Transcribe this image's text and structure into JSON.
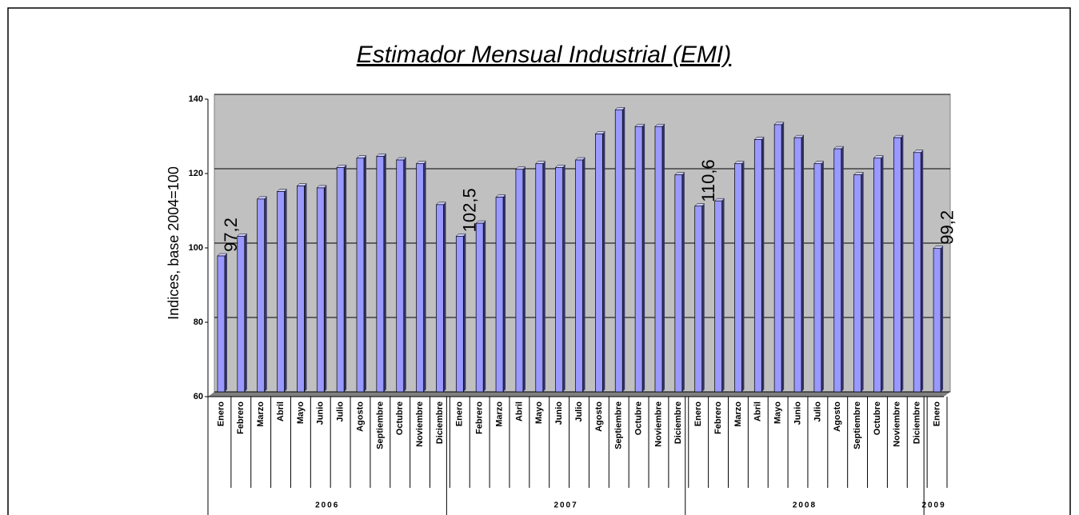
{
  "chart_data": {
    "type": "bar",
    "title": "Estimador Mensual Industrial (EMI)",
    "y_label": "Indices, base 2004=100",
    "categories": [
      "Enero",
      "Febrero",
      "Marzo",
      "Abril",
      "Mayo",
      "Junio",
      "Julio",
      "Agosto",
      "Septiembre",
      "Octubre",
      "Noviembre",
      "Diciembre",
      "Enero",
      "Febrero",
      "Marzo",
      "Abril",
      "Mayo",
      "Junio",
      "Julio",
      "Agosto",
      "Septiembre",
      "Octubre",
      "Noviembre",
      "Diciembre",
      "Enero",
      "Febrero",
      "Marzo",
      "Abril",
      "Mayo",
      "Junio",
      "Julio",
      "Agosto",
      "Septiembre",
      "Octubre",
      "Noviembre",
      "Diciembre",
      "Enero"
    ],
    "groups": [
      {
        "label": "2006",
        "count": 12
      },
      {
        "label": "2007",
        "count": 12
      },
      {
        "label": "2008",
        "count": 12
      },
      {
        "label": "2009",
        "count": 1
      }
    ],
    "values": [
      97.2,
      102.5,
      112.5,
      114.5,
      116,
      115.5,
      121,
      123.5,
      124,
      123,
      122,
      111,
      102.5,
      106,
      113,
      120.5,
      122,
      121,
      123,
      130,
      136.5,
      132,
      132,
      119,
      110.6,
      112,
      122,
      128.5,
      132.5,
      129,
      122,
      126,
      119,
      123.5,
      129,
      125,
      99.2
    ],
    "value_labels": [
      "97,2",
      null,
      null,
      null,
      null,
      null,
      null,
      null,
      null,
      null,
      null,
      null,
      "102,5",
      null,
      null,
      null,
      null,
      null,
      null,
      null,
      null,
      null,
      null,
      null,
      "110,6",
      null,
      null,
      null,
      null,
      null,
      null,
      null,
      null,
      null,
      null,
      null,
      "99,2"
    ],
    "color": "#9999ff",
    "ylim": [
      60,
      140
    ],
    "yticks": [
      60,
      80,
      100,
      120,
      140
    ],
    "grid": true
  }
}
